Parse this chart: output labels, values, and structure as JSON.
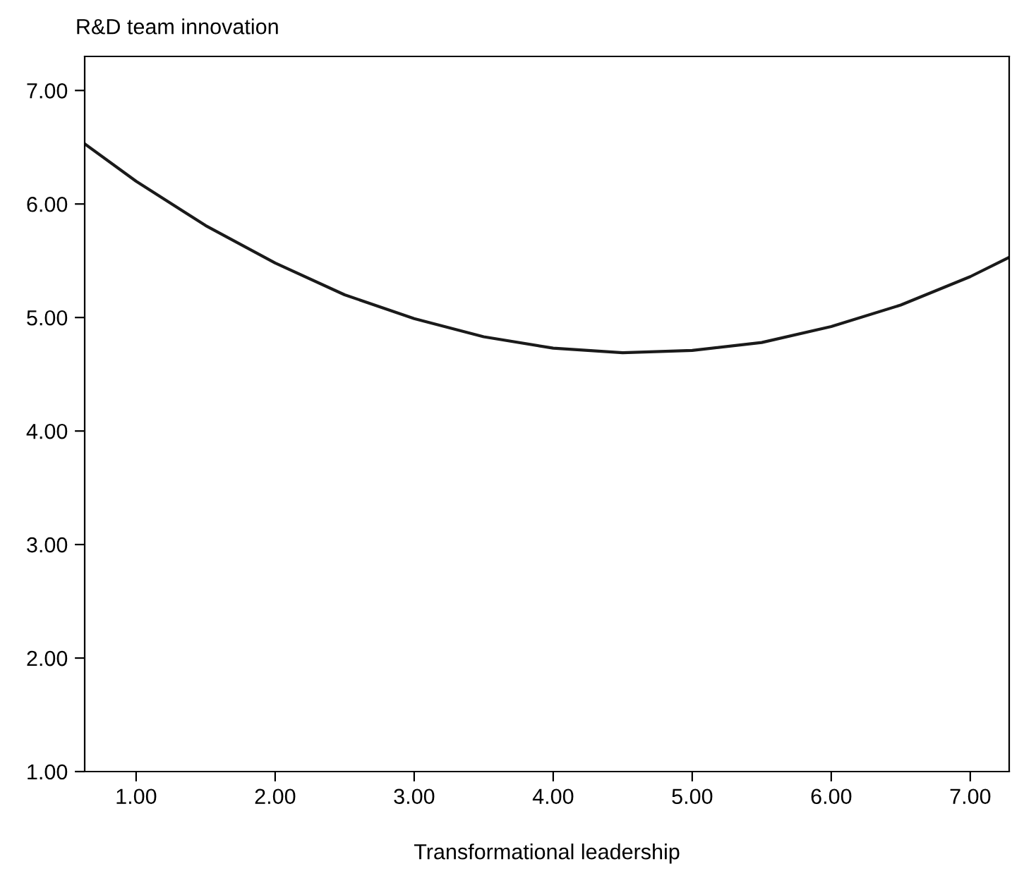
{
  "chart_data": {
    "type": "line",
    "ylabel": "R&D team innovation",
    "xlabel": "Transformational leadership",
    "series": [
      {
        "color": "#1a1a1a",
        "x": [
          0.63,
          1,
          1.5,
          2,
          2.5,
          3,
          3.5,
          4,
          4.5,
          5,
          5.5,
          6,
          6.5,
          7,
          7.28
        ],
        "values": [
          6.53,
          6.2,
          5.81,
          5.48,
          5.2,
          4.99,
          4.83,
          4.73,
          4.69,
          4.71,
          4.78,
          4.92,
          5.11,
          5.36,
          5.53
        ]
      }
    ],
    "xlim": [
      0.63,
      7.28
    ],
    "ylim": [
      1.0,
      7.3
    ],
    "xticks": [
      {
        "value": 1,
        "label": "1.00"
      },
      {
        "value": 2,
        "label": "2.00"
      },
      {
        "value": 3,
        "label": "3.00"
      },
      {
        "value": 4,
        "label": "4.00"
      },
      {
        "value": 5,
        "label": "5.00"
      },
      {
        "value": 6,
        "label": "6.00"
      },
      {
        "value": 7,
        "label": "7.00"
      }
    ],
    "yticks": [
      {
        "value": 1,
        "label": "1.00"
      },
      {
        "value": 2,
        "label": "2.00"
      },
      {
        "value": 3,
        "label": "3.00"
      },
      {
        "value": 4,
        "label": "4.00"
      },
      {
        "value": 5,
        "label": "5.00"
      },
      {
        "value": 6,
        "label": "6.00"
      },
      {
        "value": 7,
        "label": "7.00"
      }
    ],
    "grid": false,
    "legend": false,
    "marker": "none",
    "line_style": "solid"
  }
}
